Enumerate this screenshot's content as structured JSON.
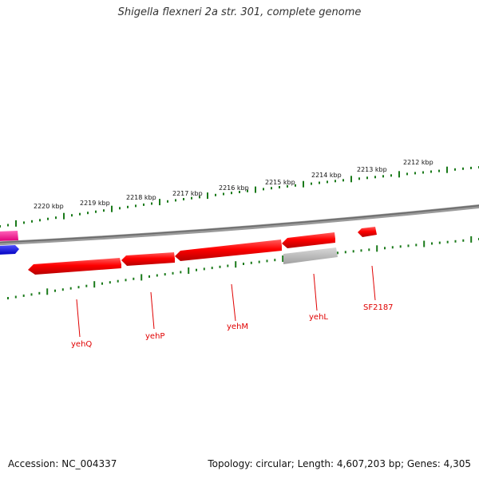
{
  "title": "Shigella flexneri 2a str. 301, complete genome",
  "footer": {
    "accession": "Accession: NC_004337",
    "summary": "Topology: circular; Length: 4,607,203 bp; Genes: 4,305"
  },
  "scale_labels": [
    "2220 kbp",
    "2219 kbp",
    "2218 kbp",
    "2217 kbp",
    "2216 kbp",
    "2215 kbp",
    "2214 kbp",
    "2213 kbp",
    "2212 kbp"
  ],
  "genes": [
    {
      "label": "yehQ",
      "color": "#ff0000"
    },
    {
      "label": "yehP",
      "color": "#ff0000"
    },
    {
      "label": "yehM",
      "color": "#ff0000"
    },
    {
      "label": "yehL",
      "color": "#ff0000"
    },
    {
      "label": "SF2187",
      "color": "#ff0000"
    }
  ],
  "colors": {
    "gene": "#ff0000",
    "backbone": "#808080",
    "ticks": "#1a7a1a",
    "pseudogene": "#b4b4b4",
    "partial_left_upper": "#ff3399",
    "partial_left_lower": "#0000ff"
  }
}
